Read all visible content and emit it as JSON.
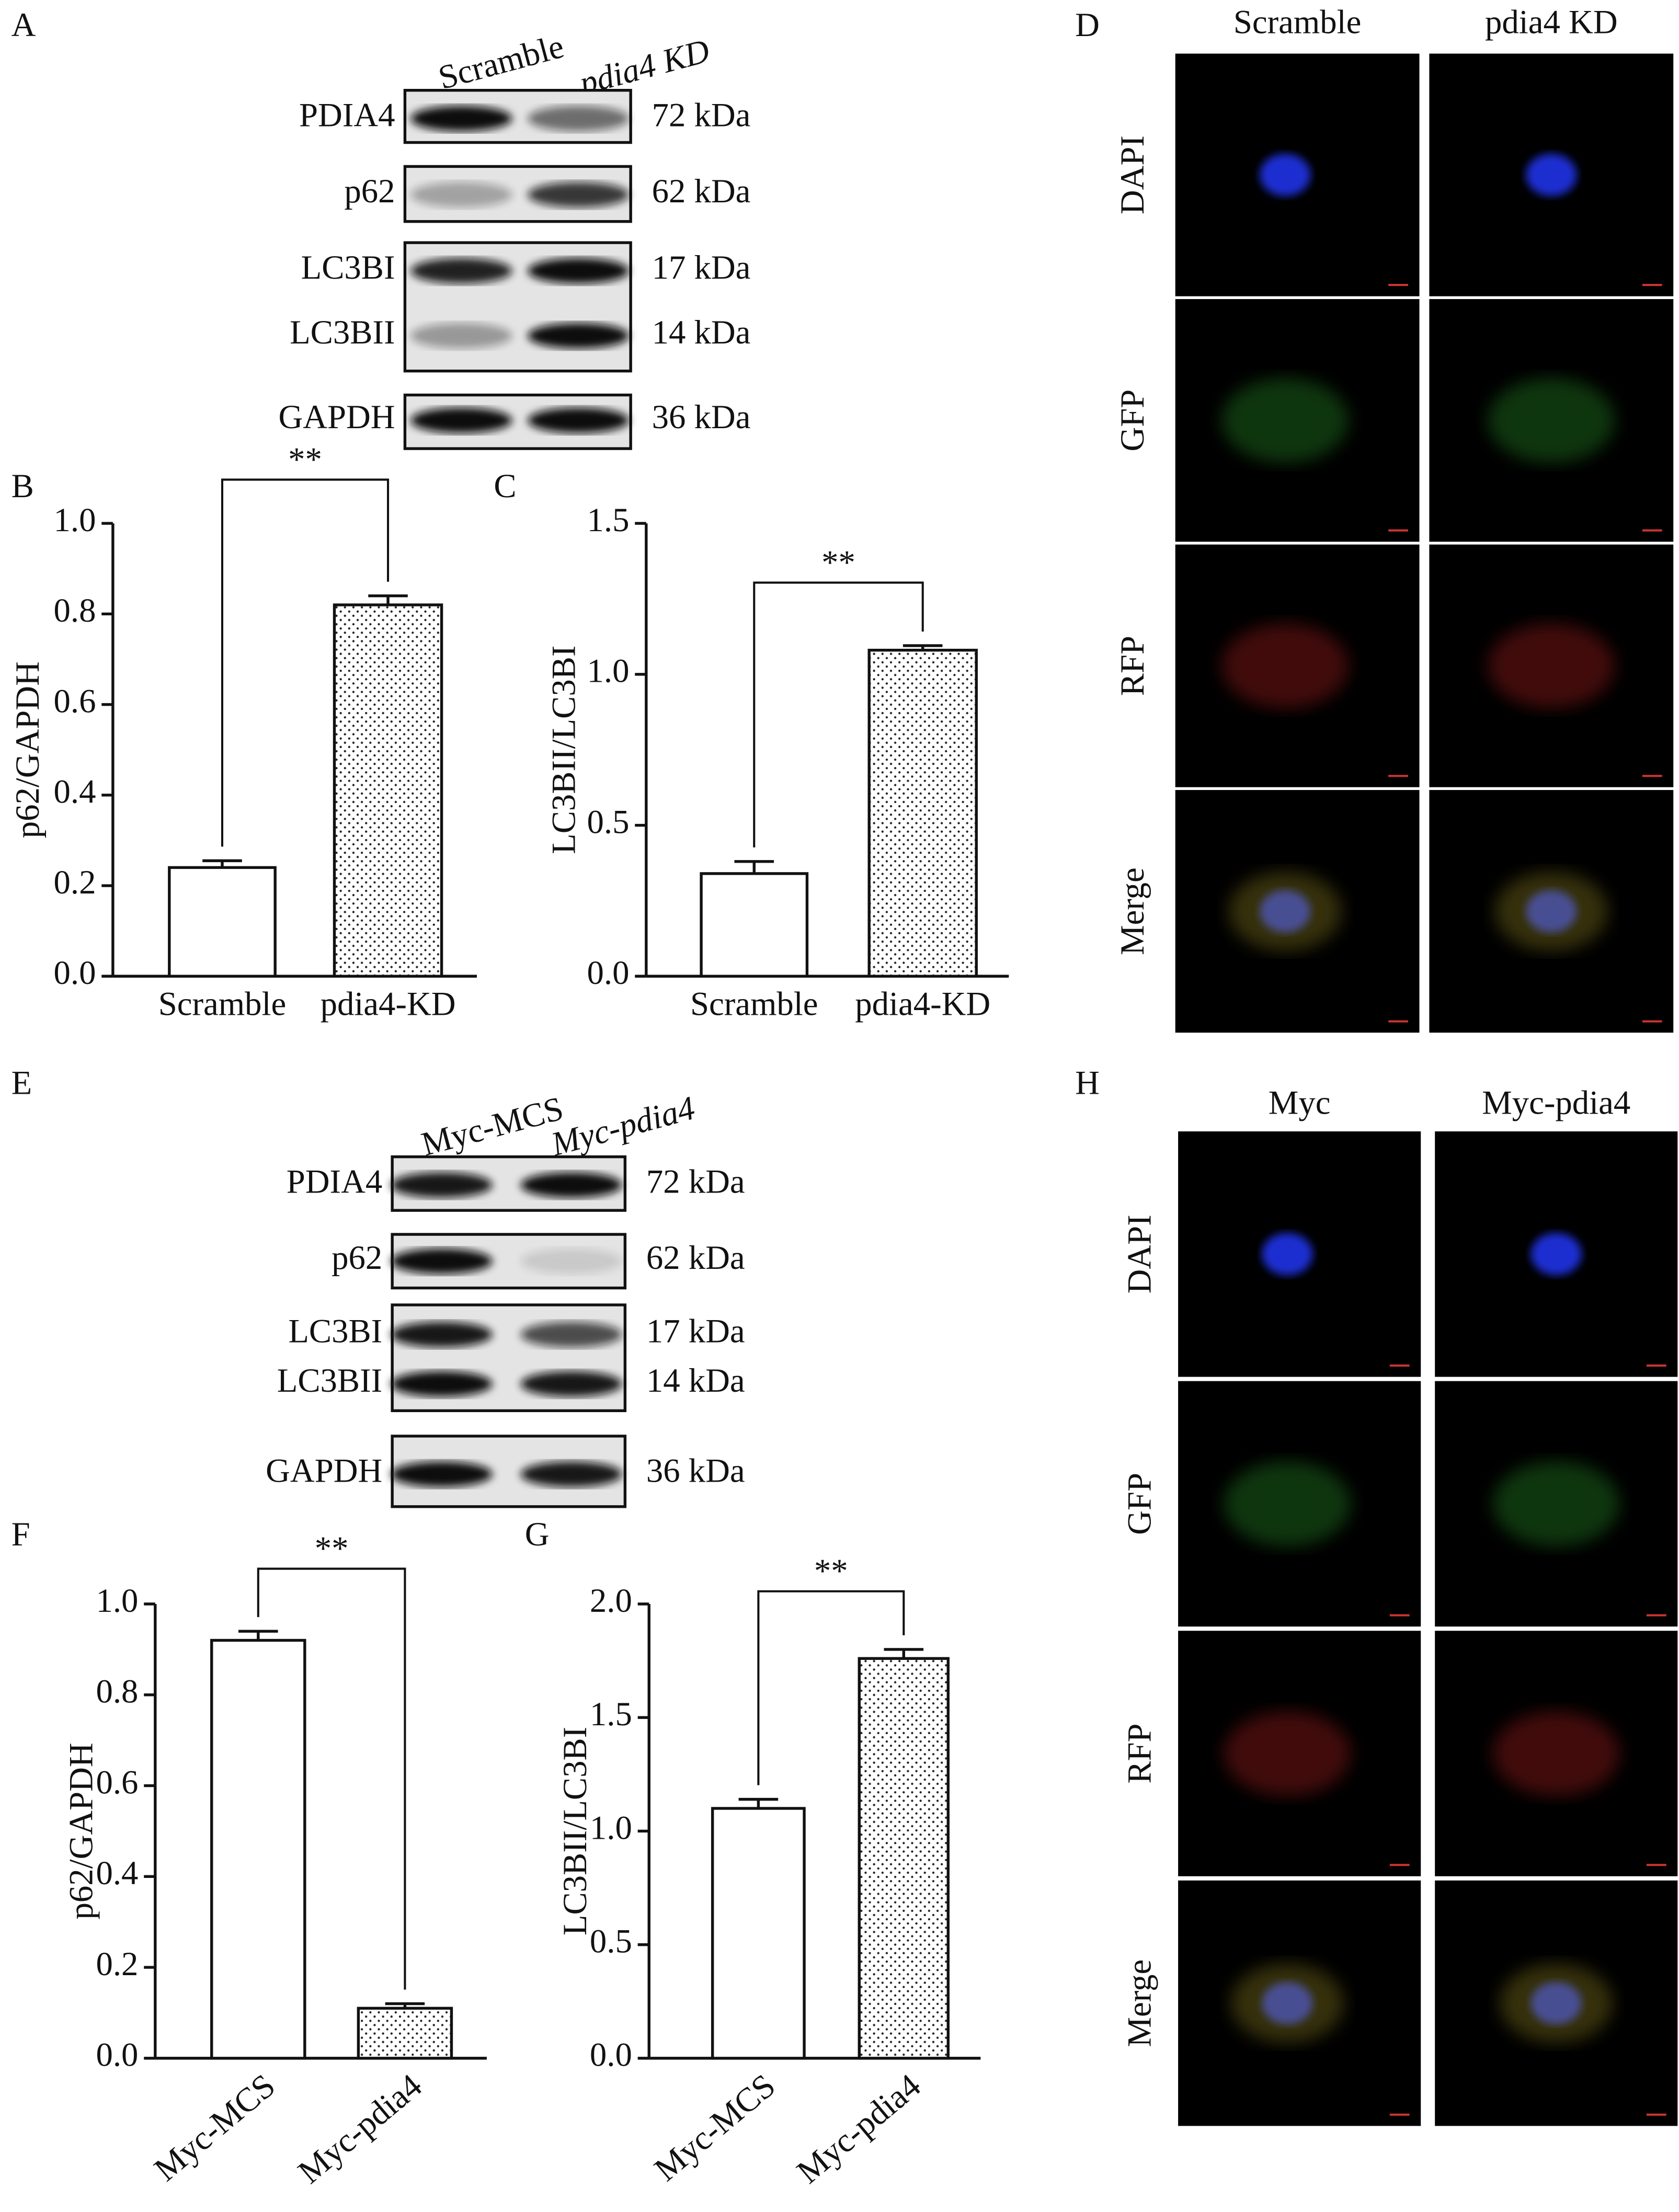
{
  "panel_labels": [
    "A",
    "B",
    "C",
    "D",
    "E",
    "F",
    "G",
    "H"
  ],
  "blots": [
    {
      "columns": [
        "Scramble",
        "pdia4 KD"
      ],
      "rows": [
        {
          "labels": [
            "PDIA4"
          ],
          "sizes": [
            "72 kDa"
          ]
        },
        {
          "labels": [
            "p62"
          ],
          "sizes": [
            "62 kDa"
          ]
        },
        {
          "labels": [
            "LC3BI",
            "LC3BII"
          ],
          "sizes": [
            "17 kDa",
            "14 kDa"
          ]
        },
        {
          "labels": [
            "GAPDH"
          ],
          "sizes": [
            "36 kDa"
          ]
        }
      ]
    },
    {
      "columns": [
        "Myc-MCS",
        "Myc-pdia4"
      ],
      "rows": [
        {
          "labels": [
            "PDIA4"
          ],
          "sizes": [
            "72 kDa"
          ]
        },
        {
          "labels": [
            "p62"
          ],
          "sizes": [
            "62 kDa"
          ]
        },
        {
          "labels": [
            "LC3BI",
            "LC3BII"
          ],
          "sizes": [
            "17 kDa",
            "14 kDa"
          ]
        },
        {
          "labels": [
            "GAPDH"
          ],
          "sizes": [
            "36 kDa"
          ]
        }
      ]
    }
  ],
  "microscopy": [
    {
      "columns": [
        "Scramble",
        "pdia4 KD"
      ],
      "rows": [
        "DAPI",
        "GFP",
        "RFP",
        "Merge"
      ],
      "row_colors": [
        "#1a1adb",
        "#1f8a1f",
        "#cc1a1a",
        "#111111"
      ]
    },
    {
      "columns": [
        "Myc",
        "Myc-pdia4"
      ],
      "rows": [
        "DAPI",
        "GFP",
        "RFP",
        "Merge"
      ],
      "row_colors": [
        "#1a1adb",
        "#1f8a1f",
        "#cc1a1a",
        "#111111"
      ]
    }
  ],
  "chart_data": [
    {
      "type": "bar",
      "categories": [
        "Scramble",
        "pdia4-KD"
      ],
      "values": [
        0.24,
        0.82
      ],
      "errors": [
        0.015,
        0.02
      ],
      "bar_fills": [
        "#ffffff",
        "dotted"
      ],
      "ylabel": "p62/GAPDH",
      "annotation": "**",
      "ylim": [
        0,
        1.0
      ],
      "yticks": [
        {
          "value": 0,
          "label": "0.0"
        },
        0.2,
        0.4,
        0.6,
        0.8,
        {
          "value": 1,
          "label": "1.0"
        }
      ]
    },
    {
      "type": "bar",
      "categories": [
        "Scramble",
        "pdia4-KD"
      ],
      "values": [
        0.34,
        1.08
      ],
      "errors": [
        0.04,
        0.015
      ],
      "bar_fills": [
        "#ffffff",
        "dotted"
      ],
      "ylabel": "LC3BII/LC3BI",
      "annotation": "**",
      "ylim": [
        0,
        1.5
      ],
      "yticks": [
        {
          "value": 0,
          "label": "0.0"
        },
        0.5,
        {
          "value": 1,
          "label": "1.0"
        },
        1.5
      ]
    },
    {
      "type": "bar",
      "categories": [
        "Myc-MCS",
        "Myc-pdia4"
      ],
      "values": [
        0.92,
        0.11
      ],
      "errors": [
        0.02,
        0.01
      ],
      "bar_fills": [
        "#ffffff",
        "dotted"
      ],
      "ylabel": "p62/GAPDH",
      "annotation": "**",
      "ylim": [
        0,
        1.0
      ],
      "yticks": [
        {
          "value": 0,
          "label": "0.0"
        },
        0.2,
        0.4,
        0.6,
        0.8,
        {
          "value": 1,
          "label": "1.0"
        }
      ]
    },
    {
      "type": "bar",
      "categories": [
        "Myc-MCS",
        "Myc-pdia4"
      ],
      "values": [
        1.1,
        1.76
      ],
      "errors": [
        0.04,
        0.04
      ],
      "bar_fills": [
        "#ffffff",
        "dotted"
      ],
      "ylabel": "LC3BII/LC3BI",
      "annotation": "**",
      "ylim": [
        0,
        2.0
      ],
      "yticks": [
        {
          "value": 0,
          "label": "0.0"
        },
        0.5,
        {
          "value": 1,
          "label": "1.0"
        },
        1.5,
        {
          "value": 2,
          "label": "2.0"
        }
      ]
    }
  ]
}
